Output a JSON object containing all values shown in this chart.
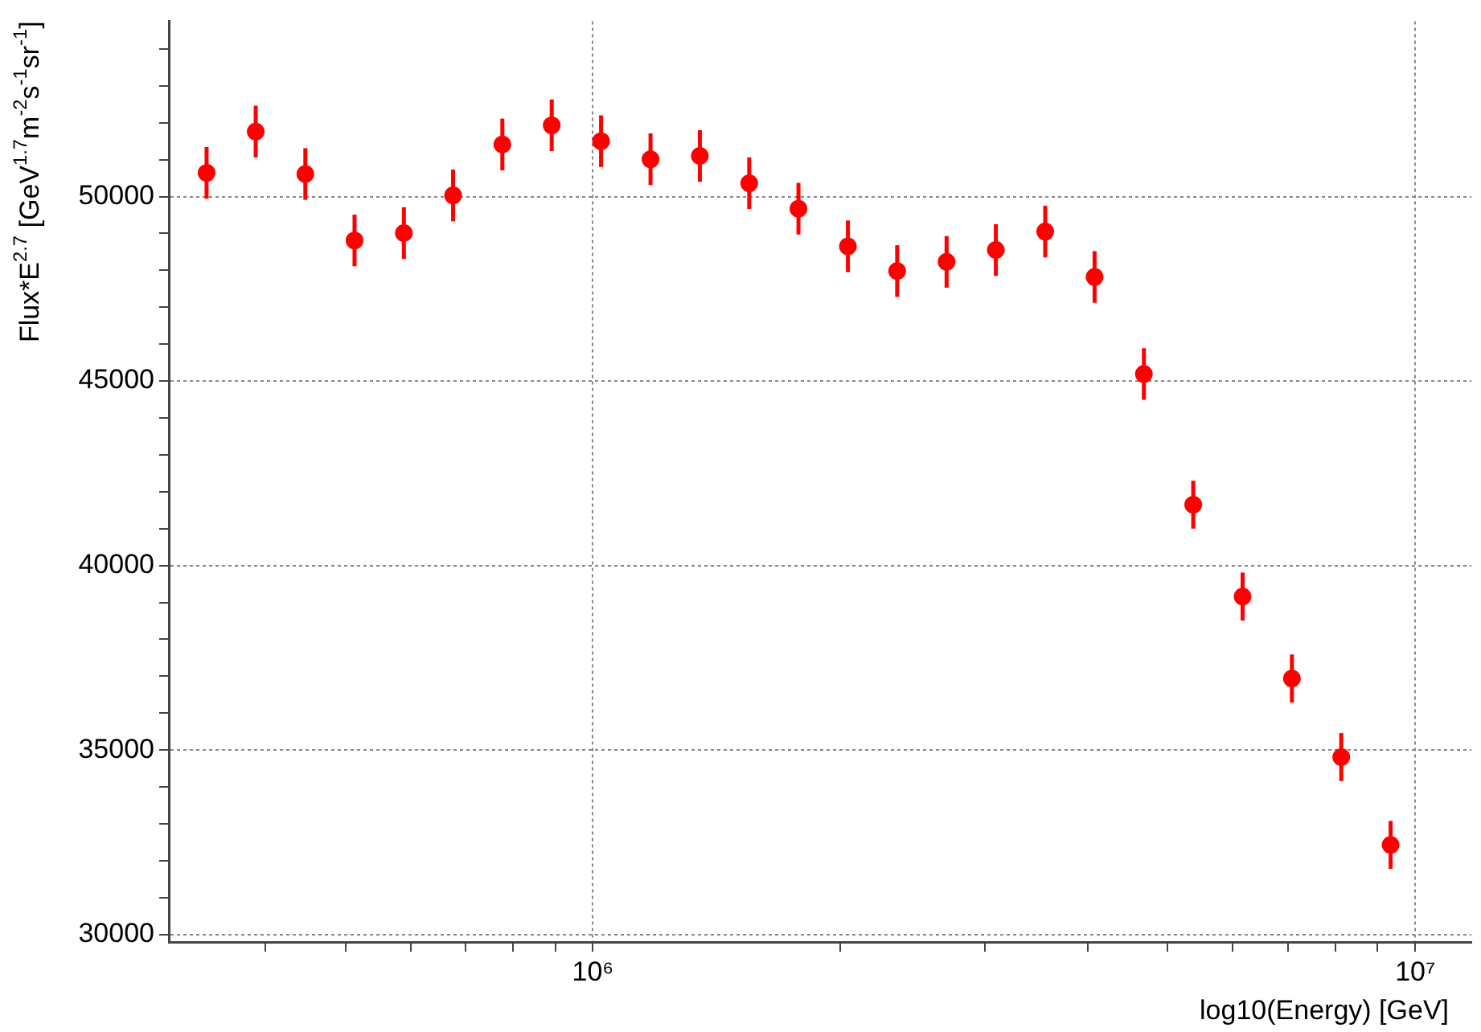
{
  "chart_data": {
    "type": "scatter",
    "xlabel": "log10(Energy) [GeV]",
    "ylabel": "Flux*E$^{2.7}$ [GeV$^{1.7}$m$^{-2}$s$^{-1}$sr$^{-1}$]",
    "x": [
      339000,
      389000,
      447000,
      513000,
      589000,
      676000,
      776000,
      891000,
      1023000,
      1175000,
      1349000,
      1549000,
      1778000,
      2042000,
      2344000,
      2692000,
      3090000,
      3548000,
      4074000,
      4677000,
      5370000,
      6166000,
      7079000,
      8128000,
      9333000
    ],
    "series": [
      {
        "color": "#ff0000",
        "values": [
          50640,
          51760,
          50610,
          48810,
          49010,
          50030,
          51410,
          51930,
          51500,
          51010,
          51100,
          50360,
          49670,
          48650,
          47980,
          48230,
          48550,
          49050,
          47820,
          45190,
          41650,
          39160,
          36940,
          34810,
          32430
        ],
        "errors": [
          700,
          700,
          700,
          700,
          700,
          700,
          700,
          700,
          700,
          700,
          700,
          700,
          700,
          700,
          700,
          700,
          700,
          700,
          700,
          700,
          650,
          650,
          650,
          650,
          650
        ]
      }
    ],
    "log": "x",
    "xlim": [
      305000,
      11700000
    ],
    "xticks": [
      {
        "value": 400000,
        "label": null
      },
      {
        "value": 500000,
        "label": null
      },
      {
        "value": 600000,
        "label": null
      },
      {
        "value": 700000,
        "label": null
      },
      {
        "value": 800000,
        "label": null
      },
      {
        "value": 900000,
        "label": null
      },
      {
        "value": 1000000,
        "label": "10⁶"
      },
      {
        "value": 2000000,
        "label": null
      },
      {
        "value": 3000000,
        "label": null
      },
      {
        "value": 4000000,
        "label": null
      },
      {
        "value": 5000000,
        "label": null
      },
      {
        "value": 6000000,
        "label": null
      },
      {
        "value": 7000000,
        "label": null
      },
      {
        "value": 8000000,
        "label": null
      },
      {
        "value": 9000000,
        "label": null
      },
      {
        "value": 10000000,
        "label": "10⁷"
      }
    ],
    "ylim": [
      29800,
      54750
    ],
    "yticks": [
      30000,
      {
        "value": 31000,
        "label": null
      },
      {
        "value": 32000,
        "label": null
      },
      {
        "value": 33000,
        "label": null
      },
      {
        "value": 34000,
        "label": null
      },
      35000,
      {
        "value": 36000,
        "label": null
      },
      {
        "value": 37000,
        "label": null
      },
      {
        "value": 38000,
        "label": null
      },
      {
        "value": 39000,
        "label": null
      },
      40000,
      {
        "value": 41000,
        "label": null
      },
      {
        "value": 42000,
        "label": null
      },
      {
        "value": 43000,
        "label": null
      },
      {
        "value": 44000,
        "label": null
      },
      45000,
      {
        "value": 46000,
        "label": null
      },
      {
        "value": 47000,
        "label": null
      },
      {
        "value": 48000,
        "label": null
      },
      {
        "value": 49000,
        "label": null
      },
      50000,
      {
        "value": 51000,
        "label": null
      },
      {
        "value": 52000,
        "label": null
      },
      {
        "value": 53000,
        "label": null
      },
      {
        "value": 54000,
        "label": null
      }
    ],
    "grid": true,
    "legend": false,
    "marker": "circle"
  }
}
